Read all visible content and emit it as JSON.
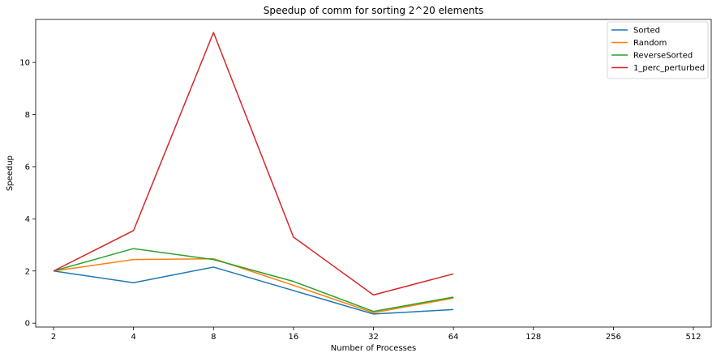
{
  "chart_data": {
    "type": "line",
    "title": "Speedup of comm for sorting 2^20 elements",
    "xlabel": "Number of Processes",
    "ylabel": "Speedup",
    "x_scale": "log2",
    "x_ticks": [
      "2",
      "4",
      "8",
      "16",
      "32",
      "64",
      "128",
      "256",
      "512"
    ],
    "x_tick_values": [
      2,
      4,
      8,
      16,
      32,
      64,
      128,
      256,
      512
    ],
    "y_ticks": [
      "0",
      "2",
      "4",
      "6",
      "8",
      "10"
    ],
    "y_tick_values": [
      0,
      2,
      4,
      6,
      8,
      10
    ],
    "xlim": [
      2,
      512
    ],
    "ylim": [
      -0.15,
      11.65
    ],
    "grid": false,
    "legend_position": "top-right",
    "x": [
      2,
      4,
      8,
      16,
      32,
      64
    ],
    "series": [
      {
        "name": "Sorted",
        "color": "#1f77b4",
        "values": [
          2.0,
          1.55,
          2.15,
          1.25,
          0.35,
          0.52
        ]
      },
      {
        "name": "Random",
        "color": "#ff7f0e",
        "values": [
          2.0,
          2.44,
          2.47,
          1.45,
          0.4,
          0.96
        ]
      },
      {
        "name": "ReverseSorted",
        "color": "#2ca02c",
        "values": [
          2.0,
          2.86,
          2.44,
          1.6,
          0.45,
          1.0
        ]
      },
      {
        "name": "1_perc_perturbed",
        "color": "#d62728",
        "values": [
          2.0,
          3.55,
          11.15,
          3.3,
          1.08,
          1.89
        ]
      }
    ]
  }
}
